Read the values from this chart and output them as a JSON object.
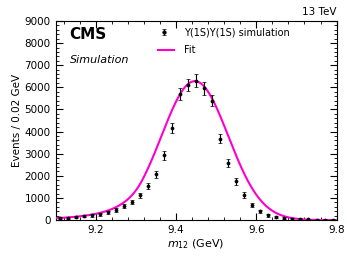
{
  "title": "13 TeV",
  "xlabel": "m_{12} (GeV)",
  "ylabel": "Events / 0.02 GeV",
  "xlim": [
    9.1,
    9.8
  ],
  "ylim": [
    0,
    9000
  ],
  "yticks": [
    0,
    1000,
    2000,
    3000,
    4000,
    5000,
    6000,
    7000,
    8000,
    9000
  ],
  "xticks": [
    9.2,
    9.4,
    9.6,
    9.8
  ],
  "fit_color": "#FF00CC",
  "fit_lw": 1.5,
  "data_color": "black",
  "cms_label": "CMS",
  "cms_sublabel": "Simulation",
  "legend_sim": "Y(1S)Y(1S) simulation",
  "legend_fit": "Fit",
  "mu": 9.447,
  "sigma": 0.083,
  "amplitude": 6280,
  "alpha": 1.6,
  "n": 5.0,
  "bin_width": 0.02,
  "data_x": [
    9.11,
    9.13,
    9.15,
    9.17,
    9.19,
    9.21,
    9.23,
    9.25,
    9.27,
    9.29,
    9.31,
    9.33,
    9.35,
    9.37,
    9.39,
    9.41,
    9.43,
    9.45,
    9.47,
    9.49,
    9.51,
    9.53,
    9.55,
    9.57,
    9.59,
    9.61,
    9.63,
    9.65,
    9.67,
    9.69,
    9.71,
    9.73,
    9.75,
    9.77,
    9.79
  ],
  "data_y": [
    80,
    105,
    140,
    175,
    215,
    270,
    345,
    460,
    620,
    830,
    1120,
    1520,
    2080,
    2920,
    4150,
    5700,
    6100,
    6300,
    5950,
    5400,
    3680,
    2600,
    1750,
    1130,
    680,
    390,
    225,
    145,
    95,
    65,
    45,
    35,
    25,
    20,
    15
  ],
  "data_yerr": [
    40,
    45,
    50,
    55,
    60,
    65,
    70,
    75,
    85,
    100,
    115,
    135,
    160,
    190,
    230,
    270,
    280,
    285,
    275,
    260,
    210,
    180,
    155,
    120,
    95,
    75,
    65,
    55,
    48,
    42,
    38,
    33,
    30,
    26,
    22
  ]
}
